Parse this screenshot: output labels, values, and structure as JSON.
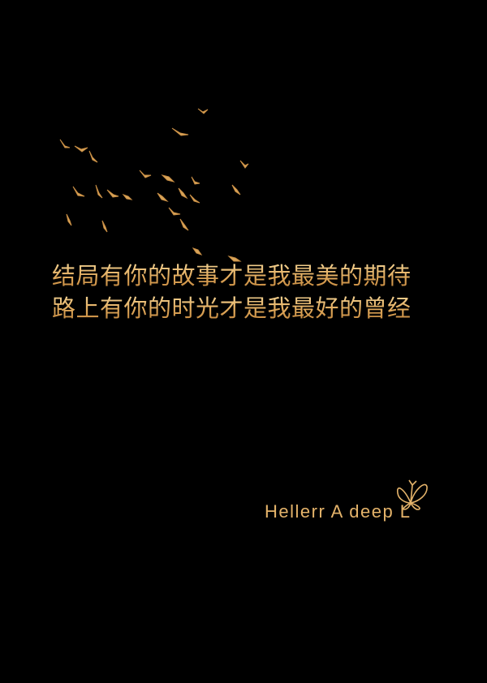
{
  "colors": {
    "background": "#000000",
    "gold": "#e4b36a",
    "gold_light": "#f7dca0",
    "gold_dark": "#b77b35"
  },
  "poem": {
    "line1": "结局有你的故事才是我最美的期待",
    "line2": "路上有你的时光才是我最好的曾经"
  },
  "signature": {
    "text": "Hellerr A deep L"
  },
  "decorations": {
    "birds_icon": "flock-of-birds-icon",
    "butterfly_icon": "butterfly-icon"
  }
}
